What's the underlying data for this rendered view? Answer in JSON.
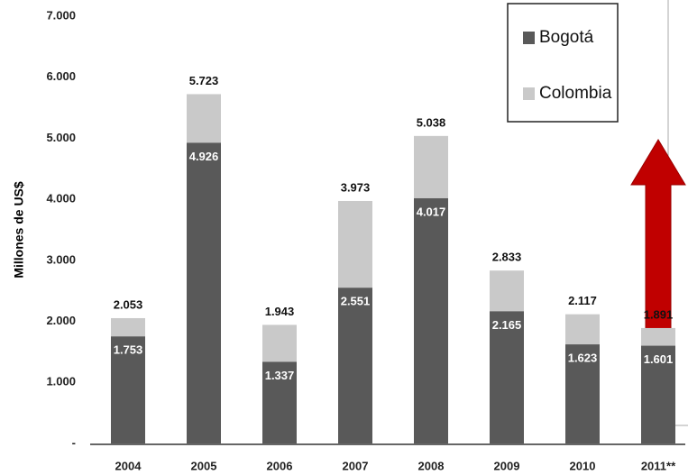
{
  "chart_data": {
    "type": "overlapped_bar",
    "y_label": "Millones de US$",
    "categories": [
      "2004",
      "2005",
      "2006",
      "2007",
      "2008",
      "2009",
      "2010",
      "2011**"
    ],
    "series": [
      {
        "name": "Colombia",
        "color": "#c9c9c9",
        "values": [
          2053,
          5723,
          1943,
          3973,
          5038,
          2833,
          2117,
          1891
        ],
        "value_labels": [
          "2.053",
          "5.723",
          "1.943",
          "3.973",
          "5.038",
          "2.833",
          "2.117",
          "1.891"
        ]
      },
      {
        "name": "Bogotá",
        "color": "#595959",
        "values": [
          1753,
          4926,
          1337,
          2551,
          4017,
          2165,
          1623,
          1601
        ],
        "value_labels": [
          "1.753",
          "4.926",
          "1.337",
          "2.551",
          "4.017",
          "2.165",
          "1.623",
          "1.601"
        ]
      }
    ],
    "ylim": [
      0,
      7000
    ],
    "yticks": [
      {
        "value": 0,
        "label": "-"
      },
      {
        "value": 1000,
        "label": "1.000"
      },
      {
        "value": 2000,
        "label": "2.000"
      },
      {
        "value": 3000,
        "label": "3.000"
      },
      {
        "value": 4000,
        "label": "4.000"
      },
      {
        "value": 5000,
        "label": "5.000"
      },
      {
        "value": 6000,
        "label": "6.000"
      },
      {
        "value": 7000,
        "label": "7.000"
      }
    ],
    "grid": false
  }
}
